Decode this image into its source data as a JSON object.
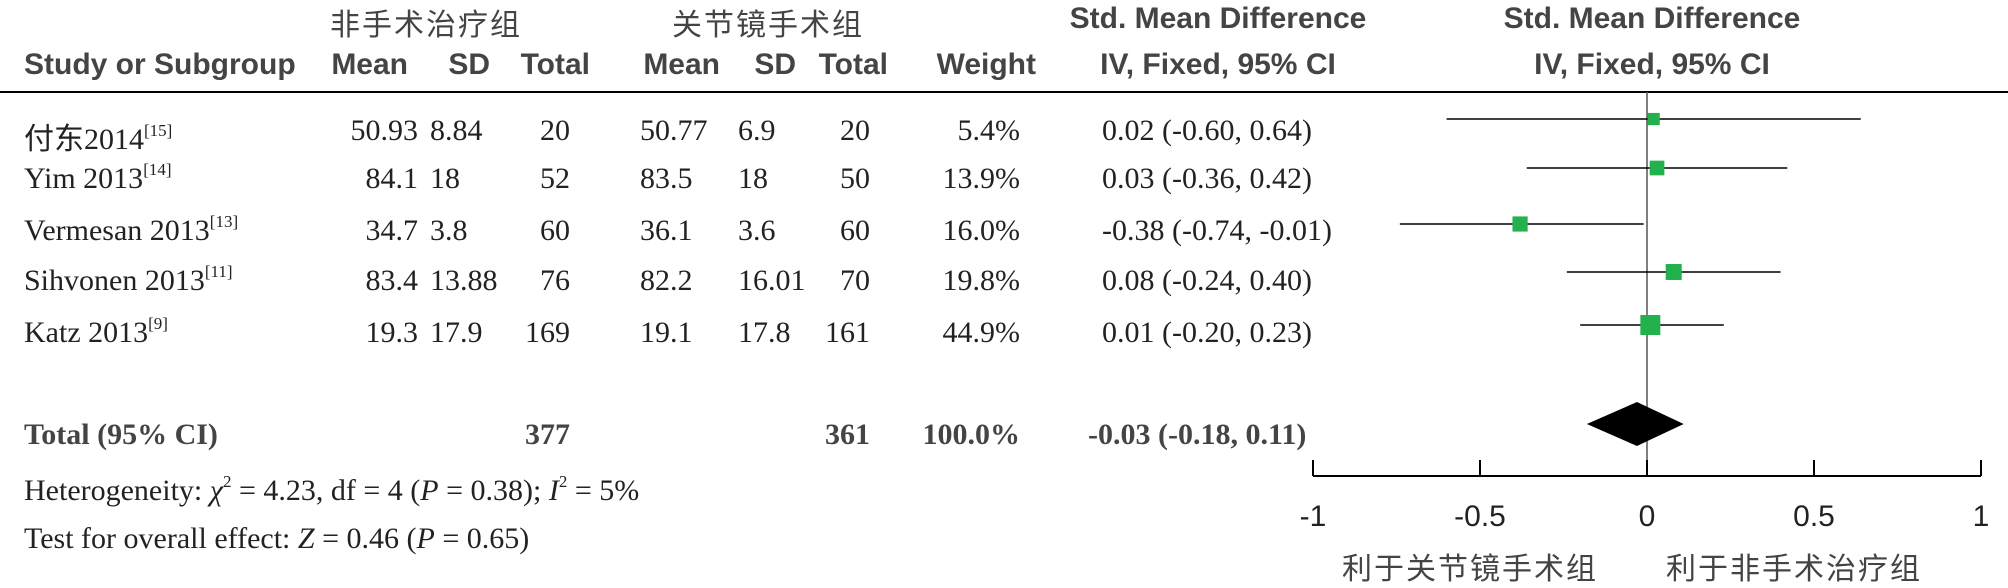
{
  "headers": {
    "study": "Study or Subgroup",
    "group1_name": "非手术治疗组",
    "group2_name": "关节镜手术组",
    "mean": "Mean",
    "sd": "SD",
    "total": "Total",
    "weight": "Weight",
    "effect_title": "Std. Mean Difference",
    "effect_method": "IV, Fixed, 95% CI"
  },
  "studies": [
    {
      "name": "付东2014",
      "ref": "[15]",
      "m1": "50.93",
      "sd1": "8.84",
      "n1": "20",
      "m2": "50.77",
      "sd2": "6.9",
      "n2": "20",
      "weight": "5.4%",
      "ci_text": "0.02 (-0.60, 0.64)"
    },
    {
      "name": "Yim 2013",
      "ref": "[14]",
      "m1": "84.1",
      "sd1": "18",
      "n1": "52",
      "m2": "83.5",
      "sd2": "18",
      "n2": "50",
      "weight": "13.9%",
      "ci_text": "0.03 (-0.36, 0.42)"
    },
    {
      "name": "Vermesan 2013",
      "ref": "[13]",
      "m1": "34.7",
      "sd1": "3.8",
      "n1": "60",
      "m2": "36.1",
      "sd2": "3.6",
      "n2": "60",
      "weight": "16.0%",
      "ci_text": "-0.38 (-0.74, -0.01)"
    },
    {
      "name": "Sihvonen 2013",
      "ref": "[11]",
      "m1": "83.4",
      "sd1": "13.88",
      "n1": "76",
      "m2": "82.2",
      "sd2": "16.01",
      "n2": "70",
      "weight": "19.8%",
      "ci_text": "0.08 (-0.24, 0.40)"
    },
    {
      "name": "Katz 2013",
      "ref": "[9]",
      "m1": "19.3",
      "sd1": "17.9",
      "n1": "169",
      "m2": "19.1",
      "sd2": "17.8",
      "n2": "161",
      "weight": "44.9%",
      "ci_text": "0.01 (-0.20, 0.23)"
    }
  ],
  "total": {
    "label": "Total (95% CI)",
    "n1": "377",
    "n2": "361",
    "weight": "100.0%",
    "ci_text": "-0.03 (-0.18, 0.11)"
  },
  "heterogeneity": {
    "prefix": "Heterogeneity: ",
    "chi_symbol": "χ",
    "chi_value": " = 4.23, df = 4 (",
    "p_symbol": "P",
    "p_value": " = 0.38); ",
    "i_symbol": "I",
    "i_value": " = 5%"
  },
  "overall_effect": {
    "prefix": "Test for overall effect: ",
    "z_symbol": "Z",
    "z_value": " = 0.46 (",
    "p_symbol": "P",
    "p_value": " = 0.65)"
  },
  "axis": {
    "favours_left": "利于关节镜手术组",
    "favours_right": "利于非手术治疗组"
  },
  "colors": {
    "marker": "#22b14c",
    "diamond": "#000000",
    "text": "#222222"
  },
  "chart_data": {
    "type": "forest",
    "title": "Std. Mean Difference",
    "subtitle": "IV, Fixed, 95% CI",
    "xlim": [
      -1,
      1
    ],
    "ticks": [
      -1,
      -0.5,
      0,
      0.5,
      1
    ],
    "tick_labels": [
      "-1",
      "-0.5",
      "0",
      "0.5",
      "1"
    ],
    "xlabel_left": "利于关节镜手术组",
    "xlabel_right": "利于非手术治疗组",
    "studies": [
      {
        "name": "付东2014",
        "estimate": 0.02,
        "lower": -0.6,
        "upper": 0.64,
        "weight": 5.4
      },
      {
        "name": "Yim 2013",
        "estimate": 0.03,
        "lower": -0.36,
        "upper": 0.42,
        "weight": 13.9
      },
      {
        "name": "Vermesan 2013",
        "estimate": -0.38,
        "lower": -0.74,
        "upper": -0.01,
        "weight": 16.0
      },
      {
        "name": "Sihvonen 2013",
        "estimate": 0.08,
        "lower": -0.24,
        "upper": 0.4,
        "weight": 19.8
      },
      {
        "name": "Katz 2013",
        "estimate": 0.01,
        "lower": -0.2,
        "upper": 0.23,
        "weight": 44.9
      }
    ],
    "pooled": {
      "estimate": -0.03,
      "lower": -0.18,
      "upper": 0.11,
      "weight": 100.0
    }
  }
}
